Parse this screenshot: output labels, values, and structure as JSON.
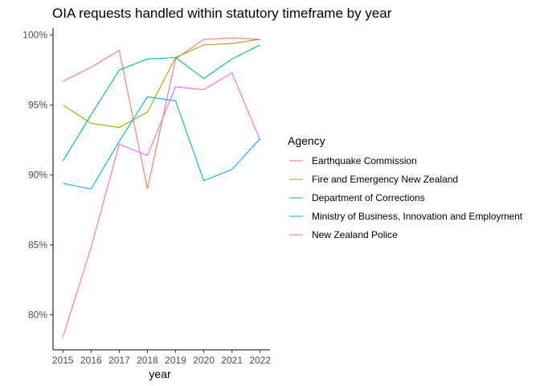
{
  "chart_data": {
    "type": "line",
    "title": "OIA requests handled within statutory timeframe by year",
    "xlabel": "year",
    "ylabel": "",
    "x": [
      2015,
      2016,
      2017,
      2018,
      2019,
      2020,
      2021,
      2022
    ],
    "xlim": [
      2014.65,
      2022.35
    ],
    "ylim": [
      77.5,
      100.5
    ],
    "y_ticks": [
      80,
      85,
      90,
      95,
      100
    ],
    "y_tick_labels": [
      "80%",
      "85%",
      "90%",
      "95%",
      "100%"
    ],
    "grid": false,
    "legend_title": "Agency",
    "legend_position": "right",
    "series": [
      {
        "name": "Earthquake Commission",
        "color": "#F8766D",
        "values": [
          96.7,
          97.7,
          98.9,
          89.0,
          98.3,
          99.7,
          99.8,
          99.7
        ]
      },
      {
        "name": "Fire and Emergency New Zealand",
        "color": "#A3A500",
        "values": [
          95.0,
          93.7,
          93.4,
          94.5,
          98.4,
          99.3,
          99.4,
          99.7
        ]
      },
      {
        "name": "Department of Corrections",
        "color": "#00BF7D",
        "values": [
          91.0,
          94.3,
          97.5,
          98.3,
          98.4,
          96.9,
          98.3,
          99.3
        ]
      },
      {
        "name": "Ministry of Business, Innovation and Employment",
        "color": "#00B0F6",
        "values": [
          89.4,
          89.0,
          92.4,
          95.6,
          95.3,
          89.6,
          90.4,
          92.6
        ]
      },
      {
        "name": "New Zealand Police",
        "color": "#E76BF3",
        "values": [
          78.4,
          84.8,
          92.2,
          91.4,
          96.3,
          96.1,
          97.3,
          92.5
        ]
      }
    ]
  }
}
